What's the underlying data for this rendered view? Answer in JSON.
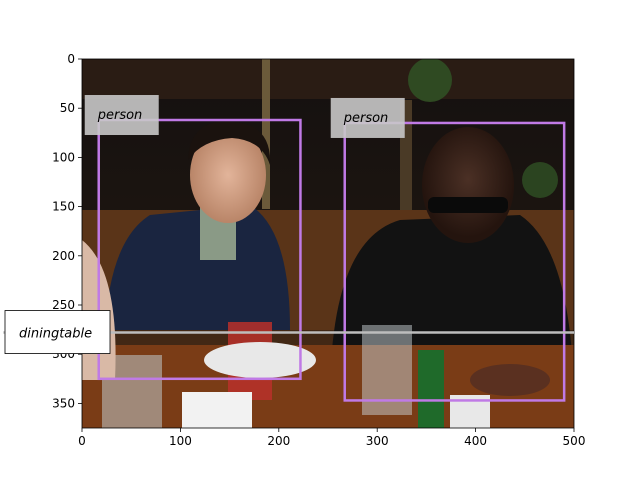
{
  "chart_data": {
    "type": "image-annotation",
    "xlim": [
      0,
      500
    ],
    "ylim": [
      375,
      0
    ],
    "x_ticks": [
      0,
      100,
      200,
      300,
      400,
      500
    ],
    "y_ticks": [
      0,
      50,
      100,
      150,
      200,
      250,
      300,
      350
    ],
    "image_description": "dark restaurant dining photo with two men seated at a table with glasses and plates",
    "boxes": [
      {
        "label": "person",
        "x0": 17,
        "y0": 62,
        "x1": 222,
        "y1": 325,
        "color": "#c07ae6"
      },
      {
        "label": "person",
        "x0": 267,
        "y0": 65,
        "x1": 490,
        "y1": 347,
        "color": "#c07ae6"
      },
      {
        "label": "diningtable",
        "x0": -80,
        "y0": 278,
        "x1": 500,
        "y1": 278,
        "color": "#bdbdbd"
      }
    ]
  },
  "colors": {
    "person_box": "#c07ae6",
    "table_box": "#bdbdbd",
    "label_bg": "#c8c8c8"
  }
}
